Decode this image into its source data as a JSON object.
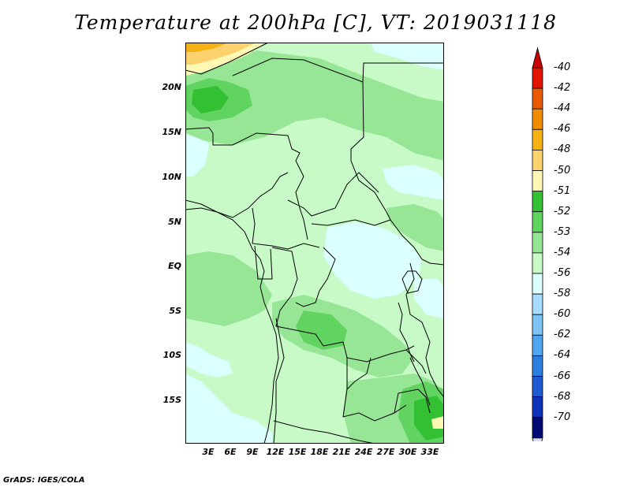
{
  "title": "Temperature at 200hPa [C], VT: 2019031118",
  "credit": "GrADS: IGES/COLA",
  "map": {
    "lat_ticks": [
      "20N",
      "15N",
      "10N",
      "5N",
      "EQ",
      "5S",
      "10S",
      "15S"
    ],
    "lon_ticks": [
      "3E",
      "6E",
      "9E",
      "12E",
      "15E",
      "18E",
      "21E",
      "24E",
      "27E",
      "30E",
      "33E"
    ]
  },
  "colorbar": {
    "labels": [
      "-40",
      "-42",
      "-44",
      "-46",
      "-48",
      "-50",
      "-51",
      "-52",
      "-53",
      "-54",
      "-56",
      "-58",
      "-60",
      "-62",
      "-64",
      "-66",
      "-68",
      "-70"
    ],
    "colors": [
      "#e11400",
      "#ea5b00",
      "#f08c00",
      "#f5b214",
      "#fbd26e",
      "#fff8b4",
      "#33c033",
      "#61d361",
      "#96e696",
      "#c8fac8",
      "#dcffff",
      "#a5dcff",
      "#7ec4f5",
      "#4fa5ee",
      "#2d7fdf",
      "#1f5ad3",
      "#0f33b8",
      "#000a73"
    ],
    "top_arrow_color": "#c80000",
    "bottom_arrow_color": "#d8d8ee"
  }
}
